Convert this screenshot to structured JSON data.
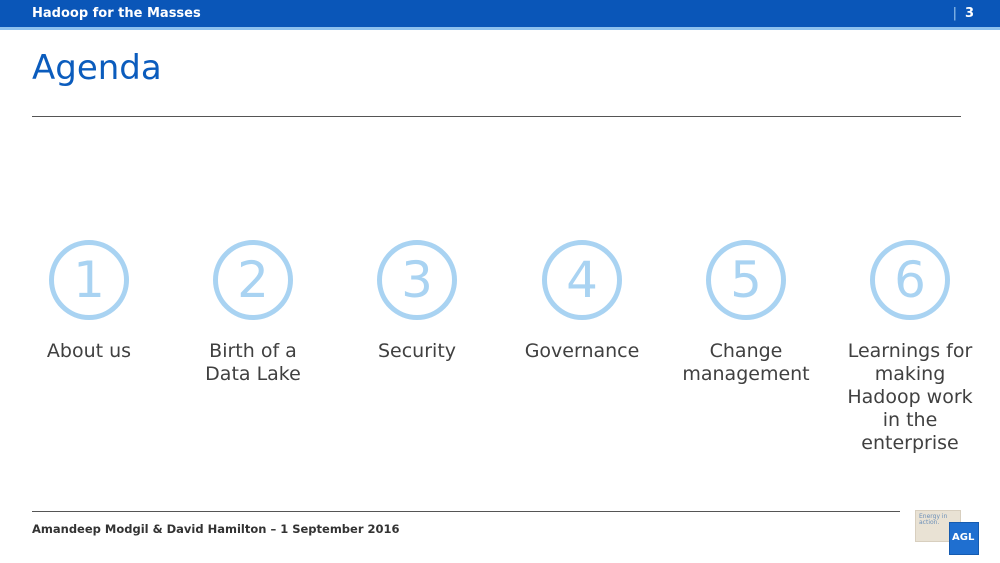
{
  "header": {
    "title": "Hadoop for the Masses",
    "separator": "|",
    "page_number": "3"
  },
  "slide": {
    "heading": "Agenda"
  },
  "agenda": [
    {
      "number": "1",
      "lines": [
        "About us"
      ]
    },
    {
      "number": "2",
      "lines": [
        "Birth of a",
        "Data Lake"
      ]
    },
    {
      "number": "3",
      "lines": [
        "Security"
      ]
    },
    {
      "number": "4",
      "lines": [
        "Governance"
      ]
    },
    {
      "number": "5",
      "lines": [
        "Change",
        "management"
      ]
    },
    {
      "number": "6",
      "lines": [
        "Learnings for",
        "making",
        "Hadoop work",
        "in the",
        "enterprise"
      ]
    }
  ],
  "footer": {
    "text": "Amandeep Modgil & David Hamilton – 1 September 2016"
  },
  "logo": {
    "energy_text": "Energy in action.",
    "brand_text": "AGL"
  },
  "colors": {
    "header_bar": "#0a56b8",
    "accent_light": "#a9d3f2",
    "heading": "#0b5cbd"
  }
}
